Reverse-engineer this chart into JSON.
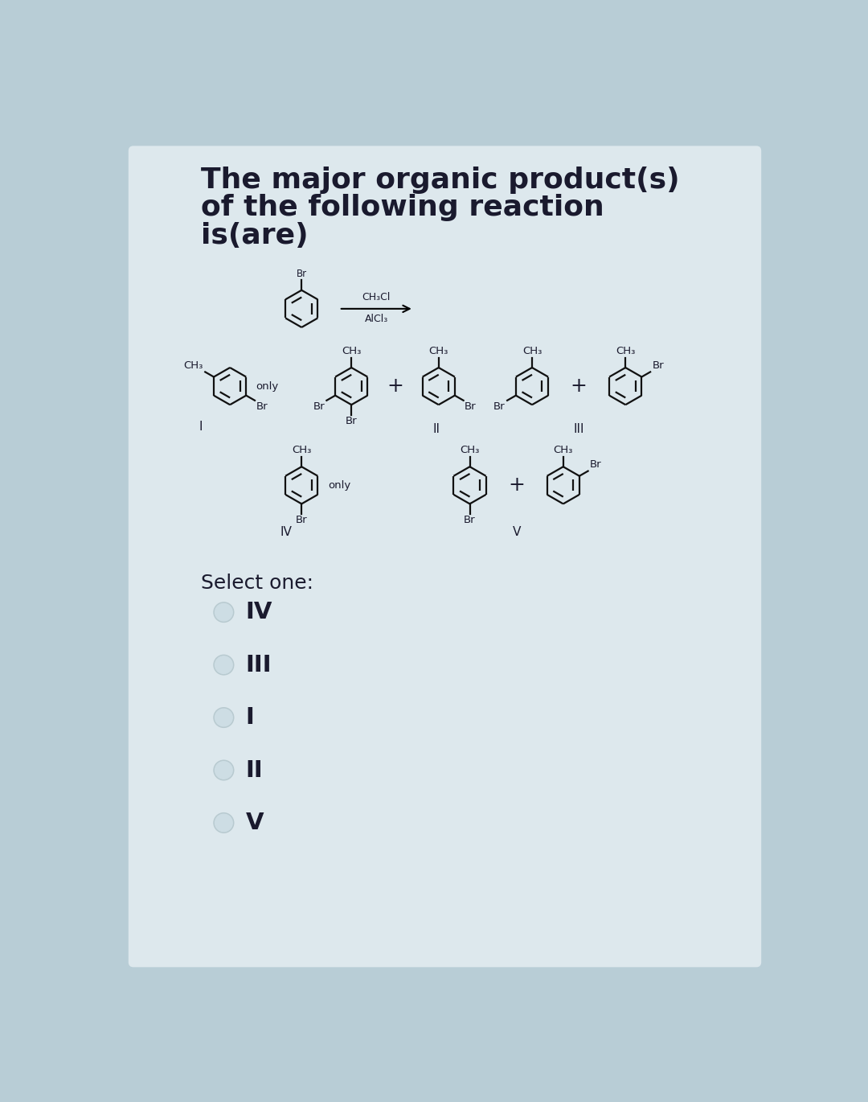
{
  "title_lines": [
    "The major organic product(s)",
    "of the following reaction",
    "is(are)"
  ],
  "title_fontsize": 26,
  "bg_color": "#dde8ed",
  "text_color": "#1a1a2e",
  "select_one_label": "Select one:",
  "options": [
    "IV",
    "III",
    "I",
    "II",
    "V"
  ],
  "outer_bg": "#b8cdd6",
  "ring_lw": 1.6,
  "ring_color": "#111111"
}
